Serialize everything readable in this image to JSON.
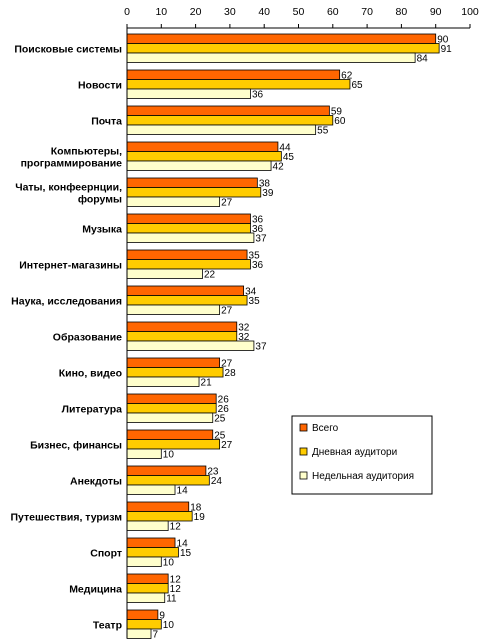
{
  "chart_data": {
    "type": "bar",
    "orientation": "horizontal",
    "xlim": [
      0,
      100
    ],
    "ticks": [
      0,
      10,
      20,
      30,
      40,
      50,
      60,
      70,
      80,
      90,
      100
    ],
    "categories": [
      [
        "Поисковые системы"
      ],
      [
        "Новости"
      ],
      [
        "Почта"
      ],
      [
        "Компьютеры,",
        "программирование"
      ],
      [
        "Чаты, конфеернции,",
        "форумы"
      ],
      [
        "Музыка"
      ],
      [
        "Интернет-магазины"
      ],
      [
        "Наука, исследования"
      ],
      [
        "Образование"
      ],
      [
        "Кино, видео"
      ],
      [
        "Литература"
      ],
      [
        "Бизнес, финансы"
      ],
      [
        "Анекдоты"
      ],
      [
        "Путешествия, туризм"
      ],
      [
        "Спорт"
      ],
      [
        "Медицина"
      ],
      [
        "Театр"
      ]
    ],
    "series": [
      {
        "name": "Всего",
        "color": "#FF6600",
        "values": [
          90,
          62,
          59,
          44,
          38,
          36,
          35,
          34,
          32,
          27,
          26,
          25,
          23,
          18,
          14,
          12,
          9
        ]
      },
      {
        "name": "Дневная аудитори",
        "color": "#FFCC00",
        "values": [
          91,
          65,
          60,
          45,
          39,
          36,
          36,
          35,
          32,
          28,
          26,
          27,
          24,
          19,
          15,
          12,
          10
        ]
      },
      {
        "name": "Недельная аудитория",
        "color": "#FFFFCC",
        "values": [
          84,
          36,
          55,
          42,
          27,
          37,
          22,
          27,
          37,
          21,
          25,
          10,
          14,
          12,
          10,
          11,
          7
        ]
      }
    ],
    "legend_position": "right-middle",
    "grid": false
  }
}
